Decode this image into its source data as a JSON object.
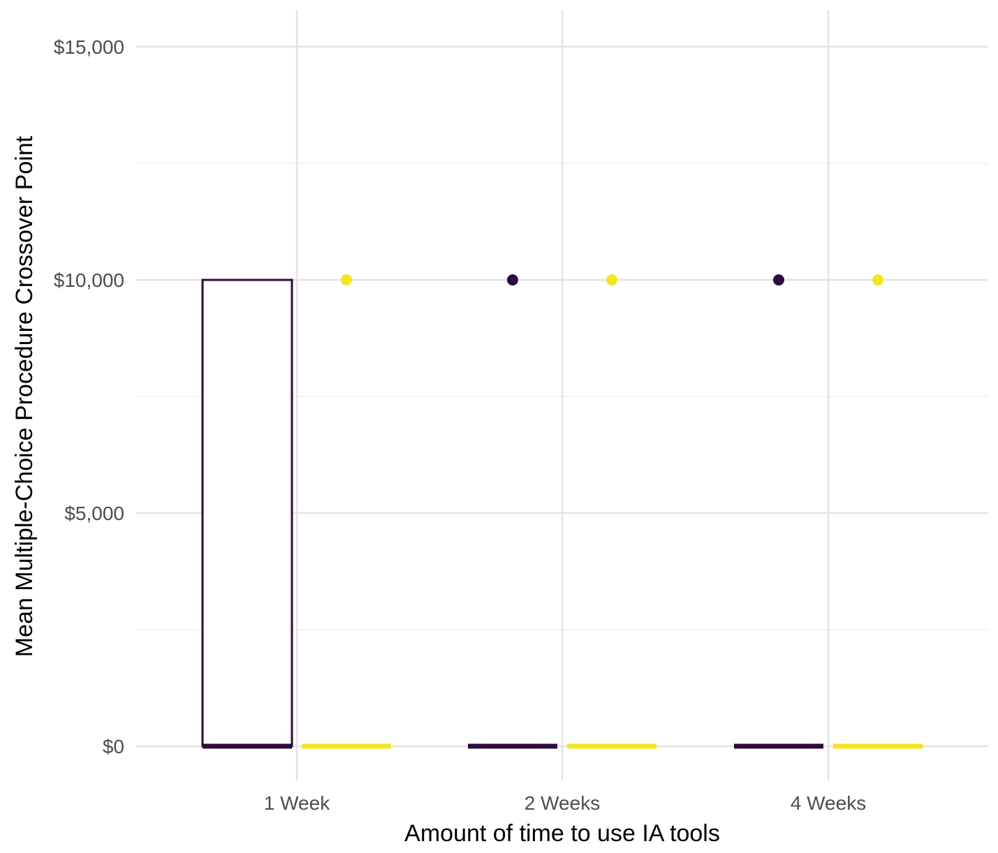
{
  "chart_data": {
    "type": "boxplot",
    "xlabel": "Amount of time to use IA tools",
    "ylabel": "Mean Multiple-Choice Procedure Crossover Point",
    "categories": [
      "1 Week",
      "2 Weeks",
      "4 Weeks"
    ],
    "ylim": [
      -800,
      15800
    ],
    "yticks": [
      0,
      5000,
      10000,
      15000
    ],
    "ytick_labels": [
      "$0",
      "$5,000",
      "$10,000",
      "$15,000"
    ],
    "grid": true,
    "legend": "none",
    "series": [
      {
        "color": "#2d0b3a",
        "boxes": [
          {
            "category": "1 Week",
            "min": 0,
            "q1": 0,
            "median": 0,
            "q3": 10000,
            "max": 10000,
            "outliers": []
          },
          {
            "category": "2 Weeks",
            "min": 0,
            "q1": 0,
            "median": 0,
            "q3": 0,
            "max": 0,
            "outliers": [
              10000
            ]
          },
          {
            "category": "4 Weeks",
            "min": 0,
            "q1": 0,
            "median": 0,
            "q3": 0,
            "max": 0,
            "outliers": [
              10000
            ]
          }
        ]
      },
      {
        "color": "#f3e51e",
        "boxes": [
          {
            "category": "1 Week",
            "min": 0,
            "q1": 0,
            "median": 0,
            "q3": 0,
            "max": 0,
            "outliers": [
              10000
            ]
          },
          {
            "category": "2 Weeks",
            "min": 0,
            "q1": 0,
            "median": 0,
            "q3": 0,
            "max": 0,
            "outliers": [
              10000
            ]
          },
          {
            "category": "4 Weeks",
            "min": 0,
            "q1": 0,
            "median": 0,
            "q3": 0,
            "max": 0,
            "outliers": [
              10000
            ]
          }
        ]
      }
    ]
  }
}
